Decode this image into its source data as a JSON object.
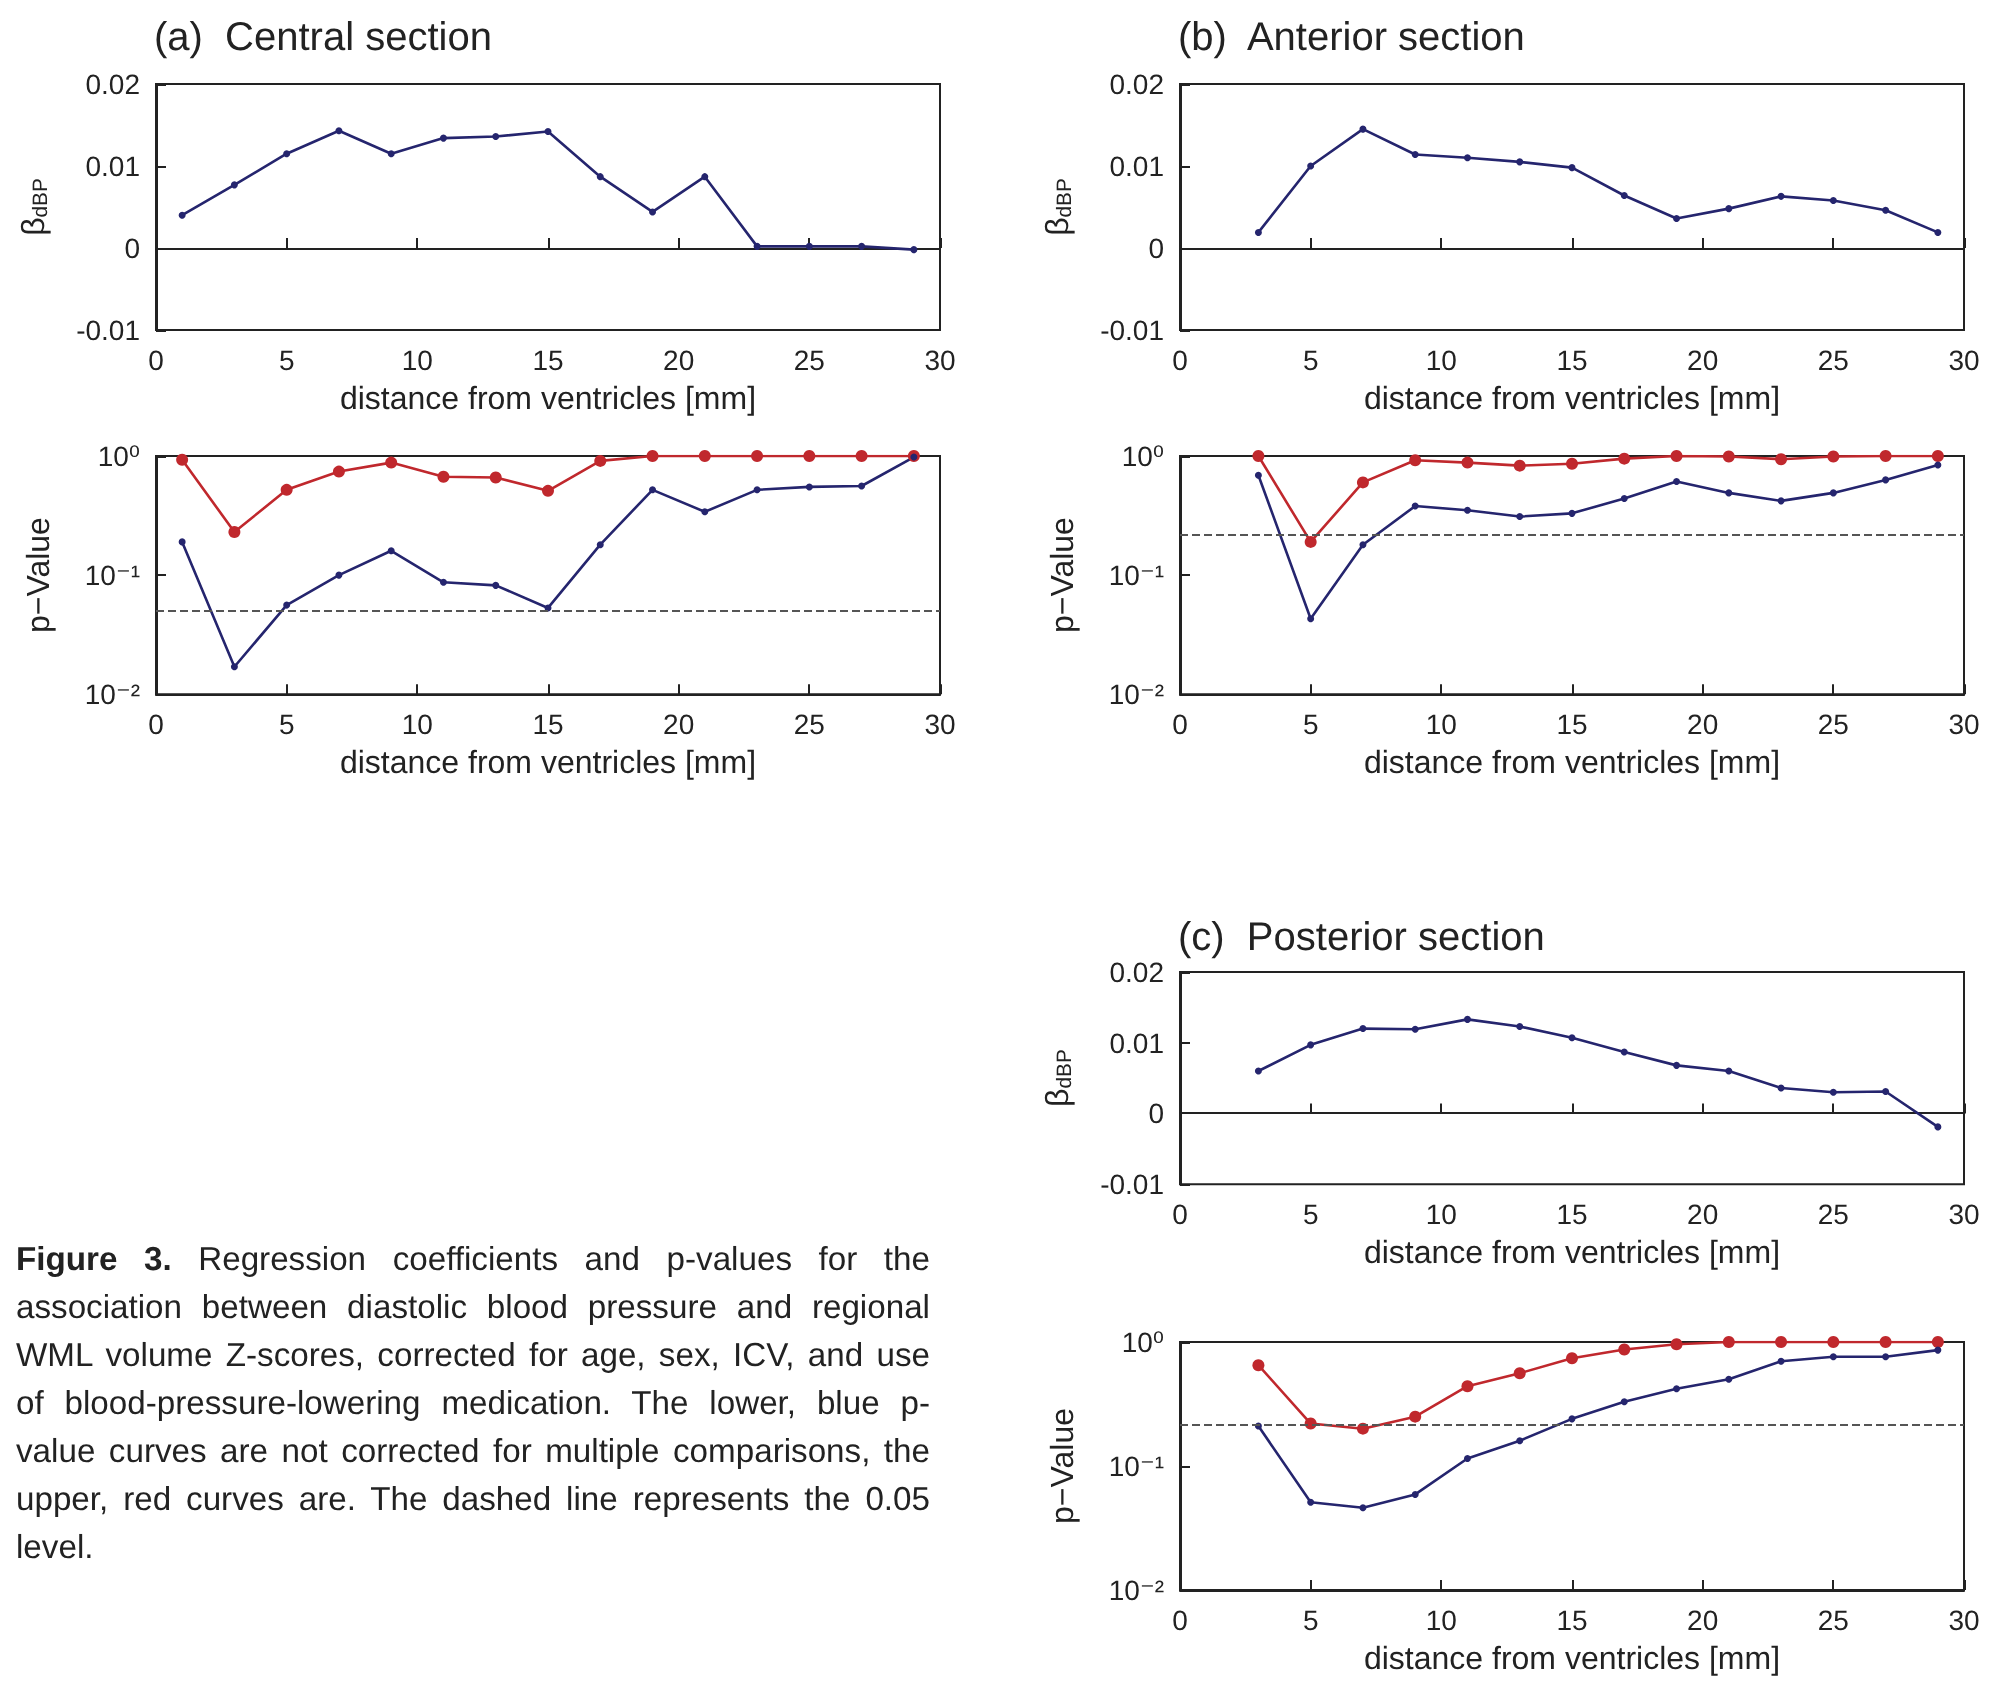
{
  "chart_data": [
    {
      "type": "line",
      "title": "(a)  Central section",
      "xlabel": "distance from ventricles [mm]",
      "ylabel": "β$_{dBP}$",
      "x": [
        1,
        3,
        5,
        7,
        9,
        11,
        13,
        15,
        17,
        19,
        21,
        23,
        25,
        27,
        29
      ],
      "xlim": [
        0,
        30
      ],
      "xticks": [
        0,
        5,
        10,
        15,
        20,
        25,
        30
      ],
      "ylim": [
        -0.01,
        0.02
      ],
      "yticks": [
        -0.01,
        0,
        0.01,
        0.02
      ],
      "marker": "circle",
      "series": [
        {
          "color": "#25256e",
          "values": [
            0.004,
            0.0077,
            0.0115,
            0.0143,
            0.0115,
            0.0134,
            0.0136,
            0.0142,
            0.0087,
            0.0044,
            0.0087,
            0.0002,
            0.0002,
            0.0002,
            -0.0002
          ]
        }
      ]
    },
    {
      "type": "line",
      "xlabel": "distance from ventricles [mm]",
      "ylabel": "p−Value",
      "x": [
        1,
        3,
        5,
        7,
        9,
        11,
        13,
        15,
        17,
        19,
        21,
        23,
        25,
        27,
        29
      ],
      "xlim": [
        0,
        30
      ],
      "xticks": [
        0,
        5,
        10,
        15,
        20,
        25,
        30
      ],
      "ylim": [
        0.01,
        1
      ],
      "yticks": [
        {
          "value": 0.01,
          "label": "10⁻²"
        },
        {
          "value": 0.1,
          "label": "10⁻¹"
        },
        {
          "value": 1,
          "label": "10⁰"
        }
      ],
      "log": "y",
      "marker": "circle",
      "ref_lines": [
        {
          "axis": "y",
          "value": 0.05,
          "color": "#555555",
          "line_style": "dashed"
        }
      ],
      "series": [
        {
          "color": "#c0282d",
          "values": [
            0.93,
            0.23,
            0.52,
            0.74,
            0.88,
            0.67,
            0.66,
            0.51,
            0.91,
            1,
            1,
            1,
            1,
            1,
            1
          ]
        },
        {
          "color": "#25256e",
          "values": [
            0.19,
            0.017,
            0.056,
            0.1,
            0.16,
            0.087,
            0.082,
            0.053,
            0.18,
            0.52,
            0.34,
            0.52,
            0.55,
            0.56,
            0.98
          ]
        }
      ]
    },
    {
      "type": "line",
      "title": "(b)  Anterior section",
      "xlabel": "distance from ventricles [mm]",
      "ylabel": "β$_{dBP}$",
      "x": [
        3,
        5,
        7,
        9,
        11,
        13,
        15,
        17,
        19,
        21,
        23,
        25,
        27,
        29
      ],
      "xlim": [
        0,
        30
      ],
      "xticks": [
        0,
        5,
        10,
        15,
        20,
        25,
        30
      ],
      "ylim": [
        -0.01,
        0.02
      ],
      "yticks": [
        -0.01,
        0,
        0.01,
        0.02
      ],
      "marker": "circle",
      "series": [
        {
          "color": "#25256e",
          "values": [
            0.0019,
            0.01,
            0.0145,
            0.0114,
            0.011,
            0.0105,
            0.0098,
            0.0064,
            0.0036,
            0.0048,
            0.0063,
            0.0058,
            0.0046,
            0.0019
          ]
        }
      ]
    },
    {
      "type": "line",
      "xlabel": "distance from ventricles [mm]",
      "ylabel": "p−Value",
      "x": [
        3,
        5,
        7,
        9,
        11,
        13,
        15,
        17,
        19,
        21,
        23,
        25,
        27,
        29
      ],
      "xlim": [
        0,
        30
      ],
      "xticks": [
        0,
        5,
        10,
        15,
        20,
        25,
        30
      ],
      "ylim": [
        0.01,
        1
      ],
      "yticks": [
        {
          "value": 0.01,
          "label": "10⁻²"
        },
        {
          "value": 0.1,
          "label": "10⁻¹"
        },
        {
          "value": 1,
          "label": "10⁰"
        }
      ],
      "log": "y",
      "marker": "circle",
      "ref_lines": [
        {
          "axis": "y",
          "value": 0.22,
          "color": "#555555",
          "line_style": "dashed"
        }
      ],
      "series": [
        {
          "color": "#c0282d",
          "values": [
            1,
            0.19,
            0.6,
            0.92,
            0.88,
            0.83,
            0.86,
            0.95,
            1,
            0.99,
            0.94,
            0.99,
            1,
            1
          ]
        },
        {
          "color": "#25256e",
          "values": [
            0.69,
            0.043,
            0.18,
            0.38,
            0.35,
            0.31,
            0.33,
            0.44,
            0.61,
            0.49,
            0.42,
            0.49,
            0.63,
            0.84
          ]
        }
      ]
    },
    {
      "type": "line",
      "title": "(c)  Posterior section",
      "xlabel": "distance from ventricles [mm]",
      "ylabel": "β$_{dBP}$",
      "x": [
        3,
        5,
        7,
        9,
        11,
        13,
        15,
        17,
        19,
        21,
        23,
        25,
        27,
        29
      ],
      "xlim": [
        0,
        30
      ],
      "xticks": [
        0,
        5,
        10,
        15,
        20,
        25,
        30
      ],
      "ylim": [
        -0.01,
        0.02
      ],
      "yticks": [
        -0.01,
        0,
        0.01,
        0.02
      ],
      "marker": "circle",
      "series": [
        {
          "color": "#25256e",
          "values": [
            0.006,
            0.0097,
            0.012,
            0.0119,
            0.0133,
            0.0123,
            0.0107,
            0.0087,
            0.0068,
            0.006,
            0.0036,
            0.003,
            0.0031,
            -0.0019
          ]
        }
      ]
    },
    {
      "type": "line",
      "xlabel": "distance from ventricles [mm]",
      "ylabel": "p−Value",
      "x": [
        3,
        5,
        7,
        9,
        11,
        13,
        15,
        17,
        19,
        21,
        23,
        25,
        27,
        29
      ],
      "xlim": [
        0,
        30
      ],
      "xticks": [
        0,
        5,
        10,
        15,
        20,
        25,
        30
      ],
      "ylim": [
        0.01,
        1
      ],
      "yticks": [
        {
          "value": 0.01,
          "label": "10⁻²"
        },
        {
          "value": 0.1,
          "label": "10⁻¹"
        },
        {
          "value": 1,
          "label": "10⁰"
        }
      ],
      "log": "y",
      "marker": "circle",
      "ref_lines": [
        {
          "axis": "y",
          "value": 0.22,
          "color": "#555555",
          "line_style": "dashed"
        }
      ],
      "series": [
        {
          "color": "#c0282d",
          "values": [
            0.65,
            0.22,
            0.2,
            0.25,
            0.44,
            0.56,
            0.74,
            0.87,
            0.96,
            1,
            1,
            1,
            1,
            1
          ]
        },
        {
          "color": "#25256e",
          "values": [
            0.21,
            0.051,
            0.046,
            0.059,
            0.115,
            0.16,
            0.24,
            0.33,
            0.42,
            0.5,
            0.7,
            0.76,
            0.76,
            0.86
          ]
        }
      ]
    },
    {
      "type": "other",
      "annotations": [
        "Figure 3. Regression coefficients and p-values for the association between diastolic blood pressure and regional WML volume Z-scores, corrected for age, sex, ICV, and use of blood-pressure-lowering medication. The lower, blue p-value curves are not corrected for multiple comparisons, the upper, red curves are. The dashed line represents the 0.05 level."
      ]
    }
  ]
}
